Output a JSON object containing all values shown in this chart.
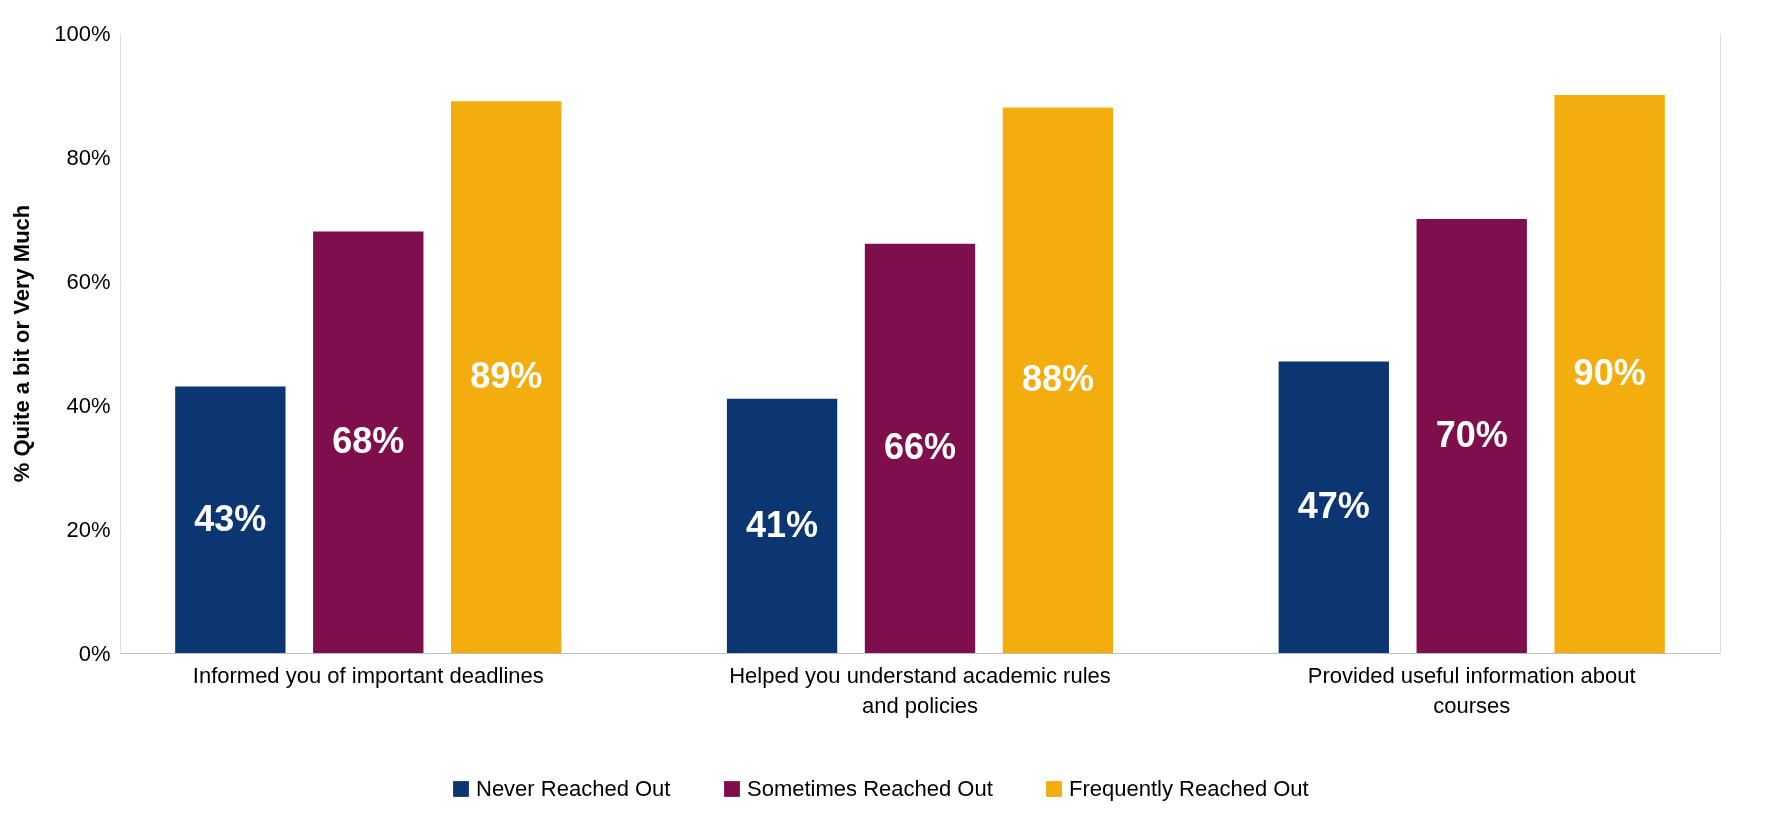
{
  "chart_data": {
    "type": "bar",
    "ylabel": "% Quite a bit or Very Much",
    "categories": [
      "Informed you of important deadlines",
      "Helped you understand academic rules and policies",
      "Provided useful information about courses"
    ],
    "series": [
      {
        "name": "Never Reached Out",
        "color": "#0b3672",
        "values": [
          43,
          41,
          47
        ],
        "value_labels": [
          "43%",
          "41%",
          "47%"
        ]
      },
      {
        "name": "Sometimes Reached Out",
        "color": "#7e0f4c",
        "values": [
          68,
          66,
          70
        ],
        "value_labels": [
          "68%",
          "66%",
          "70%"
        ]
      },
      {
        "name": "Frequently Reached Out",
        "color": "#f4ad0f",
        "values": [
          89,
          88,
          90
        ],
        "value_labels": [
          "89%",
          "88%",
          "90%"
        ]
      }
    ],
    "ylim": [
      0,
      100
    ],
    "yticks": [
      {
        "value": 0,
        "label": "0%"
      },
      {
        "value": 20,
        "label": "20%"
      },
      {
        "value": 40,
        "label": "40%"
      },
      {
        "value": 60,
        "label": "60%"
      },
      {
        "value": 80,
        "label": "80%"
      },
      {
        "value": 100,
        "label": "100%"
      }
    ],
    "grid": "y",
    "legend": "bottom"
  }
}
